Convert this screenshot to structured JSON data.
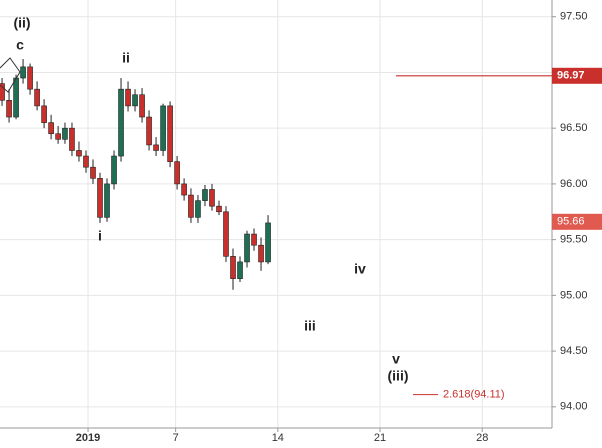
{
  "chart_data": {
    "type": "candlestick",
    "x": [
      -4.89,
      -4.41,
      -3.93,
      -3.45,
      -2.97,
      -2.49,
      -2.01,
      -1.53,
      -1.05,
      -0.58,
      -0.1,
      0.38,
      0.86,
      1.34,
      1.82,
      2.3,
      2.78,
      3.26,
      3.74,
      4.22,
      4.7,
      5.18,
      5.66,
      6.14,
      6.62,
      7.1,
      7.58,
      8.05,
      8.53,
      9.01,
      9.49,
      9.97,
      10.45,
      10.93,
      11.41,
      11.89,
      12.37,
      12.85,
      13.33
    ],
    "open": [
      96.9,
      96.75,
      96.6,
      96.95,
      97.05,
      96.85,
      96.7,
      96.55,
      96.45,
      96.4,
      96.5,
      96.3,
      96.25,
      96.15,
      96.05,
      95.7,
      96.0,
      96.25,
      96.85,
      96.7,
      96.8,
      96.6,
      96.35,
      96.3,
      96.7,
      96.2,
      96.0,
      95.9,
      95.7,
      95.85,
      95.95,
      95.8,
      95.75,
      95.35,
      95.15,
      95.3,
      95.55,
      95.45,
      95.3
    ],
    "high": [
      96.95,
      96.85,
      96.98,
      97.12,
      97.08,
      96.92,
      96.76,
      96.62,
      96.52,
      96.55,
      96.55,
      96.38,
      96.3,
      96.22,
      96.1,
      96.05,
      96.3,
      96.95,
      96.92,
      96.85,
      96.86,
      96.66,
      96.42,
      96.72,
      96.74,
      96.25,
      96.05,
      95.96,
      95.9,
      95.99,
      96.0,
      95.85,
      95.8,
      95.42,
      95.35,
      95.58,
      95.6,
      95.52,
      95.72
    ],
    "low": [
      96.7,
      96.55,
      96.58,
      96.9,
      96.8,
      96.66,
      96.5,
      96.4,
      96.36,
      96.36,
      96.25,
      96.2,
      96.1,
      96.0,
      95.65,
      95.66,
      95.95,
      96.2,
      96.65,
      96.65,
      96.55,
      96.3,
      96.25,
      96.25,
      96.15,
      95.95,
      95.85,
      95.65,
      95.65,
      95.8,
      95.76,
      95.72,
      95.3,
      95.05,
      95.12,
      95.25,
      95.4,
      95.22,
      95.28
    ],
    "close": [
      96.75,
      96.6,
      96.95,
      97.05,
      96.85,
      96.7,
      96.55,
      96.45,
      96.4,
      96.5,
      96.3,
      96.25,
      96.15,
      96.05,
      95.7,
      96.0,
      96.25,
      96.85,
      96.7,
      96.8,
      96.6,
      96.35,
      96.3,
      96.7,
      96.2,
      96.0,
      95.9,
      95.7,
      95.85,
      95.95,
      95.8,
      95.75,
      95.35,
      95.15,
      95.3,
      95.55,
      95.45,
      95.3,
      95.65
    ],
    "up_color": "#1f6f54",
    "down_color": "#c9302c",
    "xlim": [
      -5.03,
      32.78
    ],
    "xticks": [
      {
        "value": 1,
        "label": "2019"
      },
      7,
      14,
      21,
      28
    ],
    "ylim": [
      93.81,
      97.65
    ],
    "yticks": [
      {
        "value": 94.0,
        "label": "94.00"
      },
      {
        "value": 94.5,
        "label": "94.50"
      },
      {
        "value": 95.0,
        "label": "95.00"
      },
      {
        "value": 95.5,
        "label": "95.50"
      },
      {
        "value": 96.0,
        "label": "96.00"
      },
      {
        "value": 96.5,
        "label": "96.50"
      },
      {
        "value": 97.0,
        "label": "97.00"
      },
      {
        "value": 97.5,
        "label": "97.50"
      }
    ],
    "grid": true,
    "level_line": 96.97,
    "last_price": 95.66,
    "projection": {
      "value": 94.11,
      "label": "2.618(94.11)"
    },
    "wave_labels": [
      "(ii)",
      "c",
      "ii",
      "i",
      "iv",
      "iii",
      "v",
      "(iii)"
    ]
  }
}
